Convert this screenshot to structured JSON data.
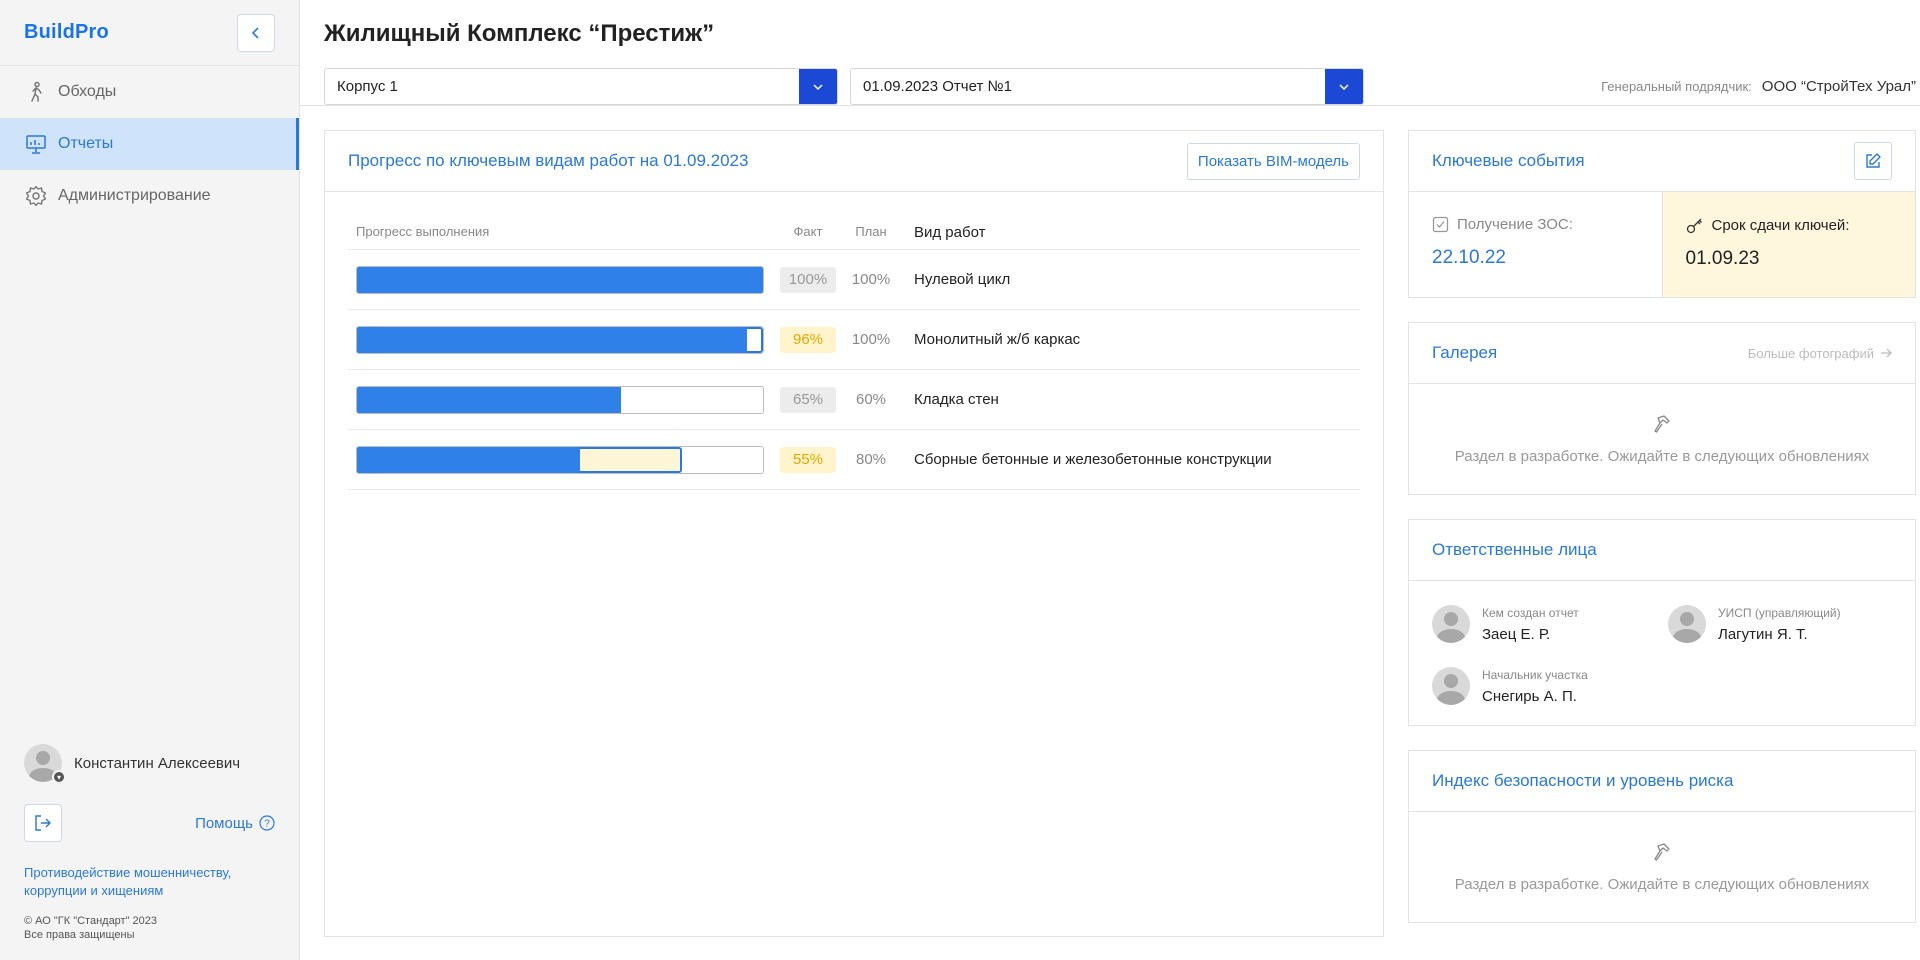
{
  "app": {
    "logo": "BuildPro"
  },
  "sidebar": {
    "items": [
      {
        "label": "Обходы",
        "icon": "walking-person-icon"
      },
      {
        "label": "Отчеты",
        "icon": "presentation-chart-icon"
      },
      {
        "label": "Администрирование",
        "icon": "gear-icon"
      }
    ],
    "user_name": "Константин Алексеевич",
    "help_label": "Помощь",
    "anti_fraud": "Противодействие мошенничеству, коррупции и хищениям",
    "copyright_line1": "©  АО \"ГК \"Стандарт\" 2023",
    "copyright_line2": "Все права защищены"
  },
  "header": {
    "title": "Жилищный Комплекс “Престиж”",
    "building_select": "Корпус 1",
    "report_select": "01.09.2023 Отчет №1",
    "contractor_label": "Генеральный подрядчик:",
    "contractor_value": "ООО “СтройТех Урал”"
  },
  "progress": {
    "title": "Прогресс по ключевым видам работ на 01.09.2023",
    "bim_button": "Показать BIM-модель",
    "col_progress": "Прогресс выполнения",
    "col_fact": "Факт",
    "col_plan": "План",
    "col_work": "Вид работ",
    "rows": [
      {
        "fact": 100,
        "plan": 100,
        "fact_label": "100%",
        "plan_label": "100%",
        "work": "Нулевой цикл",
        "status": "ok"
      },
      {
        "fact": 96,
        "plan": 100,
        "fact_label": "96%",
        "plan_label": "100%",
        "work": "Монолитный ж/б каркас",
        "status": "warn"
      },
      {
        "fact": 65,
        "plan": 60,
        "fact_label": "65%",
        "plan_label": "60%",
        "work": "Кладка стен",
        "status": "ok"
      },
      {
        "fact": 55,
        "plan": 80,
        "fact_label": "55%",
        "plan_label": "80%",
        "work": "Сборные бетонные и железобетонные конструкции",
        "status": "warn"
      }
    ]
  },
  "events": {
    "title": "Ключевые события",
    "zos_label": "Получение ЗОС:",
    "zos_value": "22.10.22",
    "keys_label": "Срок сдачи ключей:",
    "keys_value": "01.09.23"
  },
  "gallery": {
    "title": "Галерея",
    "more_link": "Больше фотографий",
    "wip": "Раздел в разработке. Ожидайте в следующих обновлениях"
  },
  "responsible": {
    "title": "Ответственные лица",
    "people": [
      {
        "role": "Кем создан отчет",
        "name": "Заец Е. Р."
      },
      {
        "role": "УИСП (управляющий)",
        "name": "Лагутин Я. Т."
      },
      {
        "role": "Начальник участка",
        "name": "Снегирь А. П."
      }
    ]
  },
  "safety": {
    "title": "Индекс безопасности и уровень риска",
    "wip": "Раздел в разработке. Ожидайте в следующих обновлениях"
  },
  "colors": {
    "accent": "#2b78d6",
    "bar_fill": "#2f80e8",
    "select_button": "#1b49d6",
    "warn": "#e0a800",
    "highlight": "#fff7dd"
  }
}
